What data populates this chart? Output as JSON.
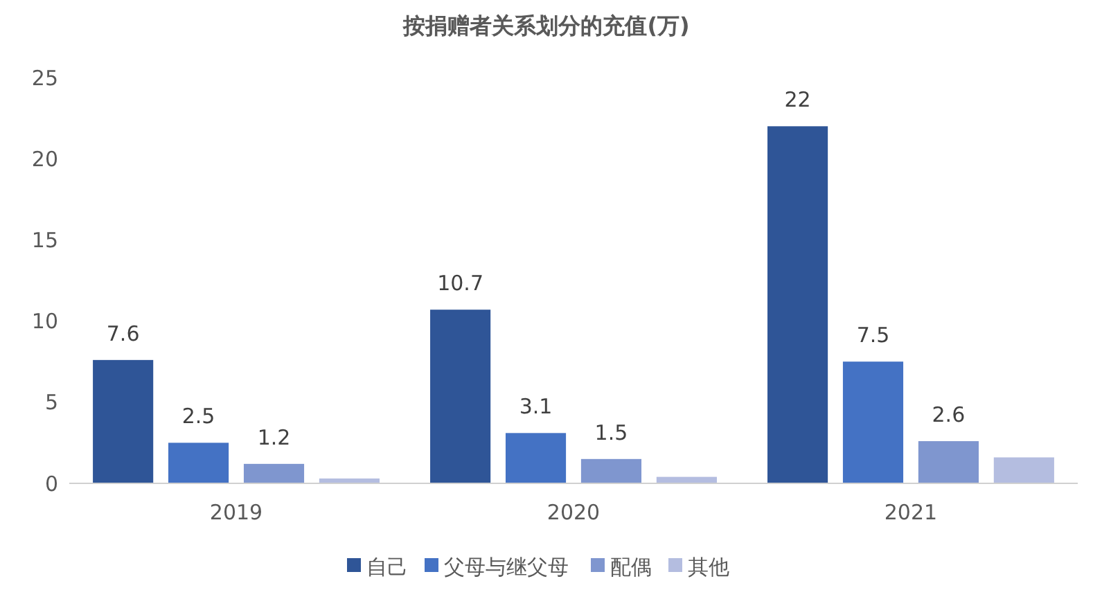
{
  "chart_data": {
    "type": "bar",
    "title": "按捐赠者关系划分的充值(万)",
    "categories": [
      "2019",
      "2020",
      "2021"
    ],
    "series": [
      {
        "name": "自己",
        "color": "#2f5597",
        "values": [
          7.6,
          10.7,
          22
        ],
        "value_labels": [
          "7.6",
          "10.7",
          "22"
        ]
      },
      {
        "name": "父母与继父母",
        "color": "#4472c4",
        "values": [
          2.5,
          3.1,
          7.5
        ],
        "value_labels": [
          "2.5",
          "3.1",
          "7.5"
        ]
      },
      {
        "name": "配偶",
        "color": "#7f96cf",
        "values": [
          1.2,
          1.5,
          2.6
        ],
        "value_labels": [
          "1.2",
          "1.5",
          "2.6"
        ]
      },
      {
        "name": "其他",
        "color": "#b4bde0",
        "values": [
          0.3,
          0.4,
          1.6
        ],
        "value_labels": [
          null,
          null,
          null
        ]
      }
    ],
    "ylim": [
      0,
      25
    ],
    "yticks": [
      0,
      5,
      10,
      15,
      20,
      25
    ],
    "grid": false,
    "legend": "bottom"
  }
}
